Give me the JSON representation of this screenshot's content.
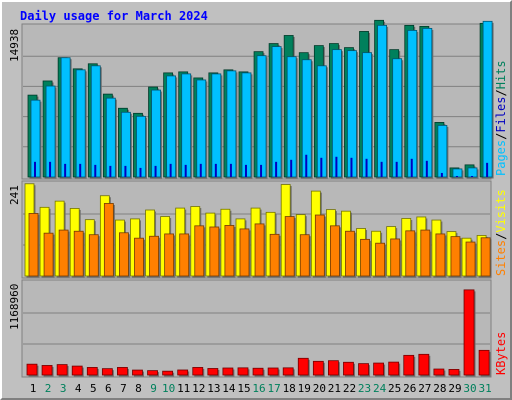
{
  "chart_data": [
    {
      "type": "bar",
      "title": "Daily usage for March 2024",
      "categories": [
        "1",
        "2",
        "3",
        "4",
        "5",
        "6",
        "7",
        "8",
        "9",
        "10",
        "11",
        "12",
        "13",
        "14",
        "15",
        "16",
        "17",
        "18",
        "19",
        "20",
        "21",
        "22",
        "23",
        "24",
        "25",
        "26",
        "27",
        "28",
        "29",
        "30",
        "31"
      ],
      "weekend_days": [
        "2",
        "3",
        "9",
        "10",
        "16",
        "17",
        "23",
        "24",
        "30",
        "31"
      ],
      "ylabel_max": "14938",
      "ylim": [
        0,
        14938
      ],
      "series": [
        {
          "name": "Hits",
          "values": [
            8100,
            9500,
            11800,
            10700,
            11200,
            8200,
            6800,
            6300,
            8900,
            10300,
            10400,
            9800,
            10300,
            10600,
            10400,
            12400,
            13200,
            14000,
            12300,
            13000,
            13200,
            12800,
            14400,
            15500,
            12600,
            15000,
            14900,
            5400,
            900,
            1200,
            15200
          ]
        },
        {
          "name": "Files",
          "values": [
            7600,
            9000,
            11800,
            10600,
            11000,
            7800,
            6400,
            6000,
            8600,
            10000,
            10200,
            9600,
            10200,
            10500,
            10300,
            12000,
            12900,
            11900,
            11600,
            11000,
            12600,
            12500,
            12300,
            15000,
            11700,
            14500,
            14700,
            5100,
            800,
            900,
            15400
          ]
        },
        {
          "name": "Pages",
          "values": [
            1500,
            1500,
            1300,
            1300,
            1200,
            1100,
            1100,
            900,
            1100,
            1300,
            1200,
            1300,
            1300,
            1300,
            1200,
            1200,
            1500,
            1700,
            2200,
            1900,
            2000,
            1900,
            1800,
            1500,
            1500,
            1800,
            1600,
            400,
            100,
            100,
            1400
          ]
        }
      ],
      "legend": {
        "hits_label": "Hits",
        "files_label": "Files",
        "pages_label": "Pages",
        "sep": "/"
      },
      "colors": {
        "hits": "#00805c",
        "files": "#00c0ff",
        "pages": "#0000c0"
      }
    },
    {
      "type": "bar",
      "ylabel_max": "241",
      "ylim": [
        0,
        241
      ],
      "series": [
        {
          "name": "Visits",
          "values": [
            239,
            178,
            194,
            175,
            146,
            208,
            145,
            148,
            171,
            154,
            176,
            180,
            163,
            173,
            148,
            176,
            165,
            237,
            159,
            220,
            172,
            168,
            123,
            116,
            128,
            149,
            153,
            145,
            115,
            98,
            105
          ]
        },
        {
          "name": "Sites",
          "values": [
            162,
            111,
            119,
            116,
            107,
            188,
            112,
            98,
            103,
            109,
            109,
            130,
            127,
            131,
            122,
            135,
            108,
            154,
            107,
            158,
            130,
            116,
            95,
            85,
            96,
            117,
            119,
            109,
            102,
            88,
            99
          ]
        }
      ],
      "legend": {
        "sites_label": "Sites",
        "visits_label": "Visits",
        "sep": "/"
      },
      "colors": {
        "visits": "#ffff00",
        "sites": "#ff8000"
      }
    },
    {
      "type": "bar",
      "ylabel_max": "1168960",
      "ylim": [
        0,
        1168960
      ],
      "series": [
        {
          "name": "KBytes",
          "values": [
            136000,
            120000,
            131000,
            112000,
            95000,
            80000,
            95000,
            62000,
            55000,
            48000,
            63000,
            95000,
            82000,
            88000,
            90000,
            85000,
            88000,
            90000,
            210000,
            172000,
            180000,
            160000,
            143000,
            150000,
            162000,
            247000,
            260000,
            75000,
            70000,
            1070000,
            310000
          ]
        }
      ],
      "legend": {
        "kbytes_label": "KBytes"
      },
      "colors": {
        "kbytes": "#ff0000"
      }
    }
  ]
}
